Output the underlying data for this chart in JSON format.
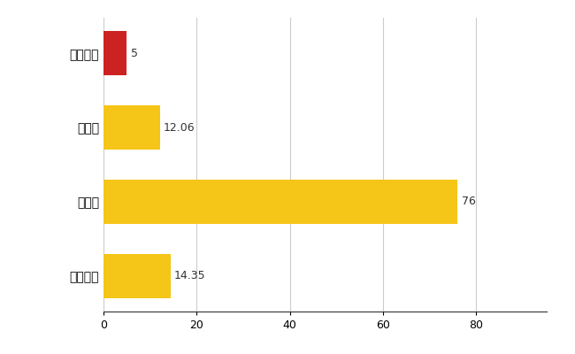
{
  "categories": [
    "多度津町",
    "県平均",
    "県最大",
    "全国平均"
  ],
  "values": [
    5,
    12.06,
    76,
    14.35
  ],
  "bar_colors": [
    "#cc2222",
    "#f5c518",
    "#f5c518",
    "#f5c518"
  ],
  "value_labels": [
    "5",
    "12.06",
    "76",
    "14.35"
  ],
  "xlim": [
    0,
    95
  ],
  "xticks": [
    0,
    20,
    40,
    60,
    80
  ],
  "grid_color": "#cccccc",
  "background_color": "#ffffff",
  "bar_height": 0.6,
  "label_fontsize": 9,
  "tick_fontsize": 9,
  "ytick_fontsize": 10
}
